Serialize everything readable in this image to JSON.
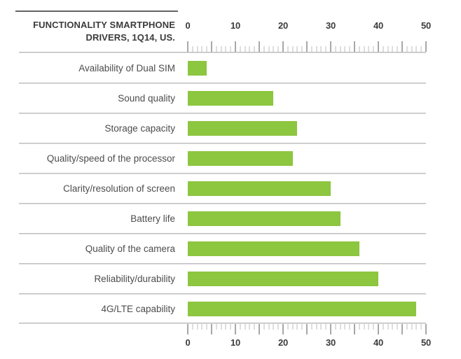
{
  "header": {
    "title_line1": "FUNCTIONALITY SMARTPHONE",
    "title_line2": "DRIVERS, 1Q14, US."
  },
  "chart_data": {
    "type": "bar",
    "orientation": "horizontal",
    "title": "FUNCTIONALITY SMARTPHONE DRIVERS, 1Q14, US.",
    "categories": [
      "Availability of Dual SIM",
      "Sound quality",
      "Storage capacity",
      "Quality/speed of the processor",
      "Clarity/resolution of screen",
      "Battery life",
      "Quality of the camera",
      "Reliability/durability",
      "4G/LTE capability"
    ],
    "values": [
      4,
      18,
      23,
      22,
      30,
      32,
      36,
      40,
      48
    ],
    "xlim": [
      0,
      50
    ],
    "x_tick_labels": [
      "0",
      "10",
      "20",
      "30",
      "40",
      "50"
    ],
    "x_major_tick_step": 5,
    "x_minor_tick_step": 1,
    "axis_position": "top and bottom",
    "legend": "none",
    "grid": "row separator lines",
    "bar_color": "#8dc63f",
    "text_color": "#3b3b3b",
    "label_color": "#4c4c4c",
    "rule_color": "#b2b2b2"
  }
}
